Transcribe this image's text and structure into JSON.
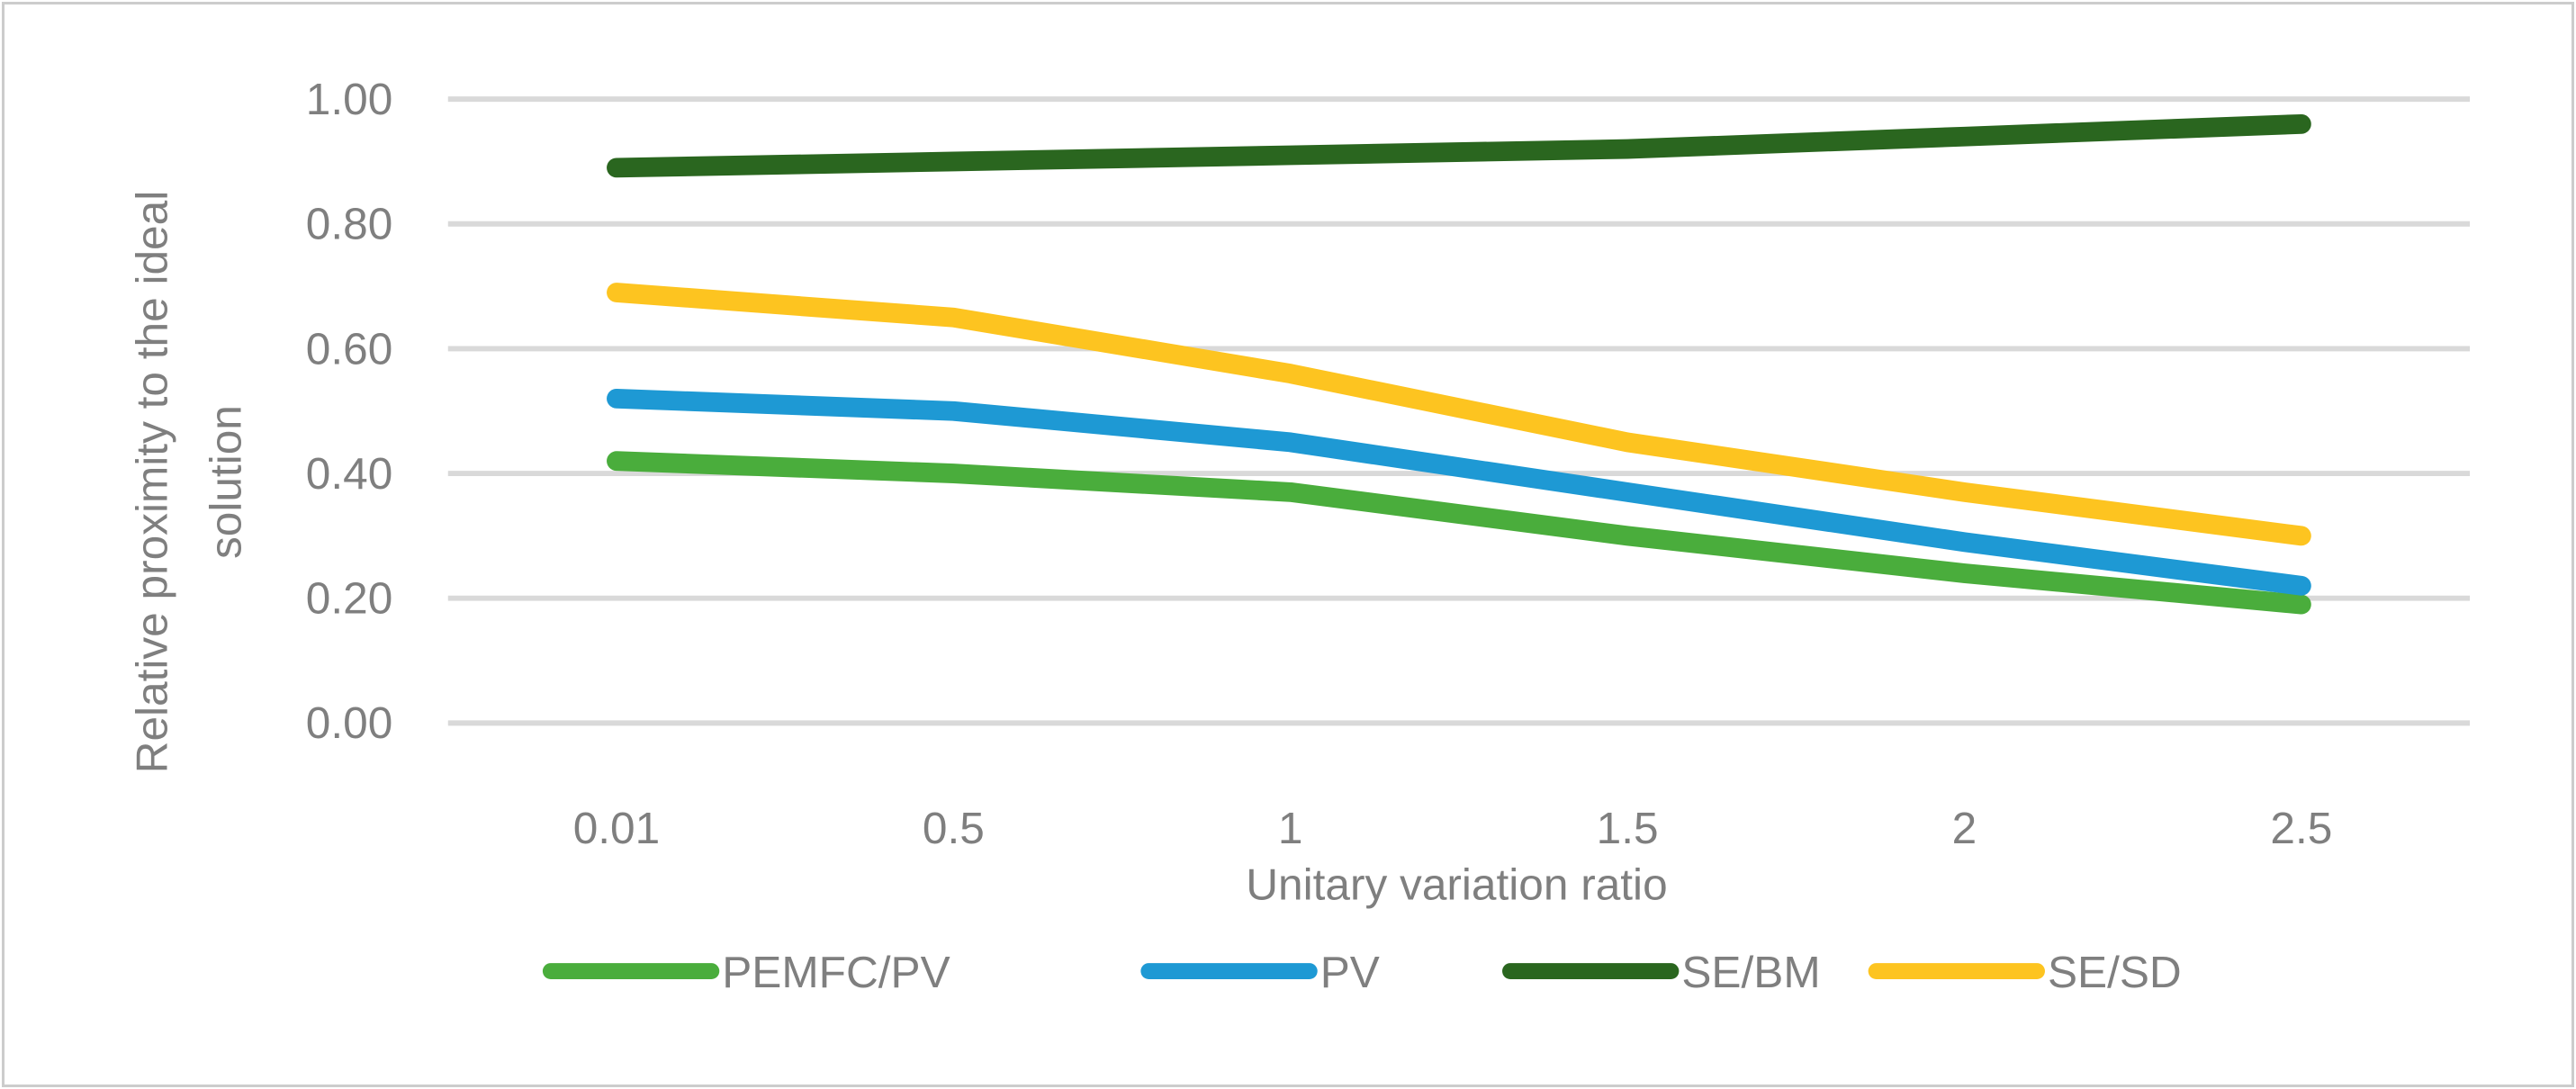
{
  "chart_data": {
    "type": "line",
    "title": "",
    "xlabel": "Unitary variation ratio",
    "ylabel": "Relative proximity to the ideal solution",
    "ylabel_lines": [
      "Relative proximity to the ideal",
      "solution"
    ],
    "categories": [
      "0.01",
      "0.5",
      "1",
      "1.5",
      "2",
      "2.5"
    ],
    "x_axis_type": "categorical",
    "yticks": [
      "1.00",
      "0.80",
      "0.60",
      "0.40",
      "0.20",
      "0.00"
    ],
    "ylim": [
      0.0,
      1.0
    ],
    "grid": "horizontal-only",
    "legend_position": "bottom",
    "series": [
      {
        "name": "PEMFC/PV",
        "color": "#4aad3c",
        "values": [
          0.42,
          0.4,
          0.37,
          0.3,
          0.24,
          0.19
        ]
      },
      {
        "name": "PV",
        "color": "#1e99d4",
        "values": [
          0.52,
          0.5,
          0.45,
          0.37,
          0.29,
          0.22
        ]
      },
      {
        "name": "SE/BM",
        "color": "#2a661f",
        "values": [
          0.89,
          0.9,
          0.91,
          0.92,
          0.94,
          0.96
        ]
      },
      {
        "name": "SE/SD",
        "color": "#fdc420",
        "values": [
          0.69,
          0.65,
          0.56,
          0.45,
          0.37,
          0.3
        ]
      }
    ],
    "colors": {
      "gridline": "#d9d9d9",
      "axis_text": "#7f7f7f",
      "frame_border": "#cccccc"
    }
  }
}
